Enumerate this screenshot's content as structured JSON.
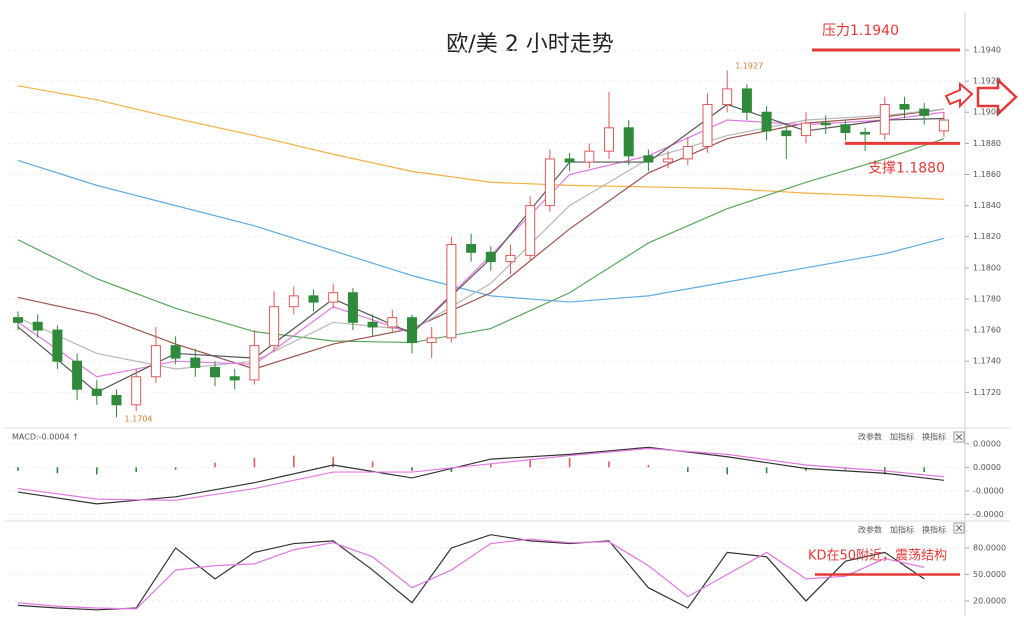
{
  "chart_data": [
    {
      "type": "candlestick",
      "title": "欧/美  2 小时走势",
      "open": [
        1.1768,
        1.1765,
        1.176,
        1.174,
        1.1722,
        1.1718,
        1.1712,
        1.173,
        1.175,
        1.1742,
        1.1736,
        1.173,
        1.1728,
        1.175,
        1.1775,
        1.1782,
        1.1778,
        1.1784,
        1.1765,
        1.1762,
        1.1768,
        1.1752,
        1.1755,
        1.1815,
        1.181,
        1.1804,
        1.1808,
        1.184,
        1.187,
        1.1868,
        1.1875,
        1.189,
        1.1872,
        1.1868,
        1.187,
        1.1878,
        1.1905,
        1.1915,
        1.19,
        1.1888,
        1.1885,
        1.1893,
        1.1892,
        1.1887,
        1.1886,
        1.1905,
        1.1902,
        1.1888
      ],
      "high": [
        1.1772,
        1.177,
        1.1763,
        1.1745,
        1.1728,
        1.1722,
        1.1735,
        1.1762,
        1.1756,
        1.1748,
        1.174,
        1.1735,
        1.176,
        1.1785,
        1.1788,
        1.1786,
        1.179,
        1.1787,
        1.177,
        1.1773,
        1.177,
        1.1762,
        1.182,
        1.1822,
        1.1814,
        1.1815,
        1.1846,
        1.1876,
        1.1874,
        1.188,
        1.1913,
        1.1895,
        1.1876,
        1.1875,
        1.1884,
        1.1912,
        1.1927,
        1.1918,
        1.1904,
        1.1892,
        1.19,
        1.1898,
        1.1895,
        1.189,
        1.191,
        1.191,
        1.1906,
        1.19
      ],
      "low": [
        1.176,
        1.1755,
        1.1735,
        1.1715,
        1.1712,
        1.1704,
        1.1708,
        1.1726,
        1.1738,
        1.173,
        1.1724,
        1.1722,
        1.1725,
        1.1746,
        1.177,
        1.1772,
        1.1774,
        1.176,
        1.1756,
        1.1758,
        1.1745,
        1.1742,
        1.1752,
        1.1804,
        1.1798,
        1.1796,
        1.1804,
        1.1836,
        1.1862,
        1.1864,
        1.187,
        1.1866,
        1.1862,
        1.1864,
        1.1866,
        1.1874,
        1.19,
        1.1895,
        1.1882,
        1.187,
        1.188,
        1.1886,
        1.1882,
        1.1875,
        1.1882,
        1.1896,
        1.1892,
        1.1884
      ],
      "close": [
        1.1765,
        1.176,
        1.174,
        1.1722,
        1.1718,
        1.1712,
        1.173,
        1.175,
        1.1742,
        1.1736,
        1.173,
        1.1728,
        1.175,
        1.1775,
        1.1782,
        1.1778,
        1.1784,
        1.1765,
        1.1762,
        1.1768,
        1.1752,
        1.1755,
        1.1815,
        1.181,
        1.1804,
        1.1808,
        1.184,
        1.187,
        1.1868,
        1.1875,
        1.189,
        1.1872,
        1.1868,
        1.187,
        1.1878,
        1.1905,
        1.1915,
        1.19,
        1.1888,
        1.1885,
        1.1893,
        1.1892,
        1.1887,
        1.1886,
        1.1905,
        1.1902,
        1.1898,
        1.1895
      ],
      "up_color": "#e05a5a",
      "down_color": "#2f8a3a",
      "high_label": "1.1927",
      "low_label": "1.1704",
      "extreme_color": "#d9822b",
      "ylim": [
        1.1699,
        1.19625
      ],
      "yticks": [
        {
          "value": 1.194,
          "label": "1.1940"
        },
        {
          "value": 1.192,
          "label": "1.1920"
        },
        {
          "value": 1.19,
          "label": "1.1900"
        },
        {
          "value": 1.188,
          "label": "1.1880"
        },
        {
          "value": 1.186,
          "label": "1.1860"
        },
        {
          "value": 1.184,
          "label": "1.1840"
        },
        {
          "value": 1.182,
          "label": "1.1820"
        },
        {
          "value": 1.18,
          "label": "1.1800"
        },
        {
          "value": 1.178,
          "label": "1.1780"
        },
        {
          "value": 1.176,
          "label": "1.1760"
        },
        {
          "value": 1.174,
          "label": "1.1740"
        },
        {
          "value": 1.172,
          "label": "1.1720"
        }
      ],
      "grid": true,
      "ma_x": [
        0,
        4,
        8,
        12,
        16,
        20,
        24,
        28,
        32,
        36,
        40,
        44,
        47
      ],
      "ma_series": [
        {
          "color": "#f5b041",
          "values": [
            1.1917,
            1.1908,
            1.1896,
            1.1885,
            1.1873,
            1.1862,
            1.1855,
            1.1853,
            1.1852,
            1.1851,
            1.1848,
            1.1846,
            1.1844
          ]
        },
        {
          "color": "#5dade2",
          "values": [
            1.1869,
            1.1853,
            1.184,
            1.1827,
            1.1811,
            1.1795,
            1.1782,
            1.1778,
            1.1782,
            1.1791,
            1.18,
            1.1809,
            1.1819
          ]
        },
        {
          "color": "#58a85c",
          "values": [
            1.1818,
            1.1793,
            1.1774,
            1.1759,
            1.1753,
            1.1752,
            1.1761,
            1.1784,
            1.1816,
            1.1838,
            1.1855,
            1.187,
            1.1883
          ]
        },
        {
          "color": "#a0524d",
          "values": [
            1.1781,
            1.177,
            1.1751,
            1.1735,
            1.1751,
            1.1761,
            1.1784,
            1.1825,
            1.1861,
            1.1883,
            1.1893,
            1.1897,
            1.1902
          ]
        },
        {
          "color": "#b8b8b8",
          "values": [
            1.1768,
            1.1745,
            1.1735,
            1.174,
            1.1765,
            1.176,
            1.179,
            1.184,
            1.187,
            1.1885,
            1.1895,
            1.1898,
            1.1902
          ]
        },
        {
          "color": "#e377e3",
          "values": [
            1.1765,
            1.173,
            1.174,
            1.1738,
            1.1775,
            1.1758,
            1.1808,
            1.186,
            1.1872,
            1.1895,
            1.1892,
            1.1895,
            1.19
          ]
        },
        {
          "color": "#555555",
          "values": [
            1.1762,
            1.172,
            1.1745,
            1.1742,
            1.178,
            1.1758,
            1.1806,
            1.1868,
            1.1868,
            1.1905,
            1.1888,
            1.1895,
            1.1896
          ]
        }
      ],
      "levels": [
        {
          "label": "压力1.1940",
          "value": 1.194,
          "color": "#e53935"
        },
        {
          "label": "支撑1.1880",
          "value": 1.188,
          "color": "#e53935"
        }
      ]
    },
    {
      "type": "macd",
      "title": "MACD:-0.0004 ↑",
      "buttons": [
        "改参数",
        "加指标",
        "换指标"
      ],
      "ylim": [
        -4.3e-05,
        3e-05
      ],
      "yticks": [
        {
          "value": 2e-05,
          "label": "0.0000"
        },
        {
          "value": 0,
          "label": "0.0000"
        },
        {
          "value": -2e-05,
          "label": "-0.0000"
        },
        {
          "value": -4e-05,
          "label": "-0.0000"
        }
      ],
      "bar_x": [
        0,
        2,
        4,
        6,
        8,
        10,
        12,
        14,
        16,
        18,
        20,
        22,
        24,
        26,
        28,
        30,
        32,
        34,
        36,
        38,
        40,
        42,
        44,
        46
      ],
      "bars": [
        -3e-06,
        -5e-06,
        -6e-06,
        -4e-06,
        -2e-06,
        4e-06,
        8e-06,
        1e-05,
        9e-06,
        5e-06,
        -3e-06,
        -4e-06,
        3e-06,
        6e-06,
        8e-06,
        5e-06,
        2e-06,
        -4e-06,
        -6e-06,
        -5e-06,
        -3e-06,
        -2e-06,
        -6e-06,
        -4e-06
      ],
      "up_color": "#e05a5a",
      "down_color": "#2f8a3a",
      "line_x": [
        0,
        4,
        8,
        12,
        16,
        20,
        24,
        28,
        32,
        36,
        40,
        44,
        47
      ],
      "series": [
        {
          "color": "#333333",
          "values": [
            -2.1e-05,
            -3.1e-05,
            -2.5e-05,
            -1.3e-05,
            2e-06,
            -9e-06,
            7e-06,
            1.1e-05,
            1.7e-05,
            9e-06,
            -1e-06,
            -5e-06,
            -1.1e-05
          ]
        },
        {
          "color": "#e377e3",
          "values": [
            -1.8e-05,
            -2.7e-05,
            -2.8e-05,
            -1.8e-05,
            -4e-06,
            -4e-06,
            3e-06,
            1e-05,
            1.6e-05,
            1.1e-05,
            2e-06,
            -3e-06,
            -8e-06
          ]
        }
      ]
    },
    {
      "type": "line",
      "buttons": [
        "改参数",
        "加指标",
        "换指标"
      ],
      "ylim": [
        7.5,
        106
      ],
      "yticks": [
        {
          "value": 80,
          "label": "80.0000"
        },
        {
          "value": 50,
          "label": "50.0000"
        },
        {
          "value": 20,
          "label": "20.0000"
        }
      ],
      "x": [
        0,
        2,
        4,
        6,
        8,
        10,
        12,
        14,
        16,
        18,
        20,
        22,
        24,
        26,
        28,
        30,
        32,
        34,
        36,
        38,
        40,
        42,
        44,
        46
      ],
      "series": [
        {
          "color": "#333333",
          "values": [
            15,
            12,
            10,
            12,
            80,
            45,
            75,
            85,
            88,
            55,
            18,
            80,
            95,
            88,
            85,
            88,
            35,
            12,
            75,
            70,
            20,
            65,
            75,
            45
          ]
        },
        {
          "color": "#e377e3",
          "values": [
            18,
            14,
            12,
            11,
            55,
            60,
            62,
            78,
            86,
            70,
            35,
            55,
            85,
            90,
            86,
            87,
            60,
            25,
            50,
            75,
            45,
            48,
            68,
            58
          ]
        }
      ],
      "annotation": {
        "text": "KD在50附近，震荡结构",
        "value": 50,
        "color": "#e53935"
      }
    }
  ]
}
